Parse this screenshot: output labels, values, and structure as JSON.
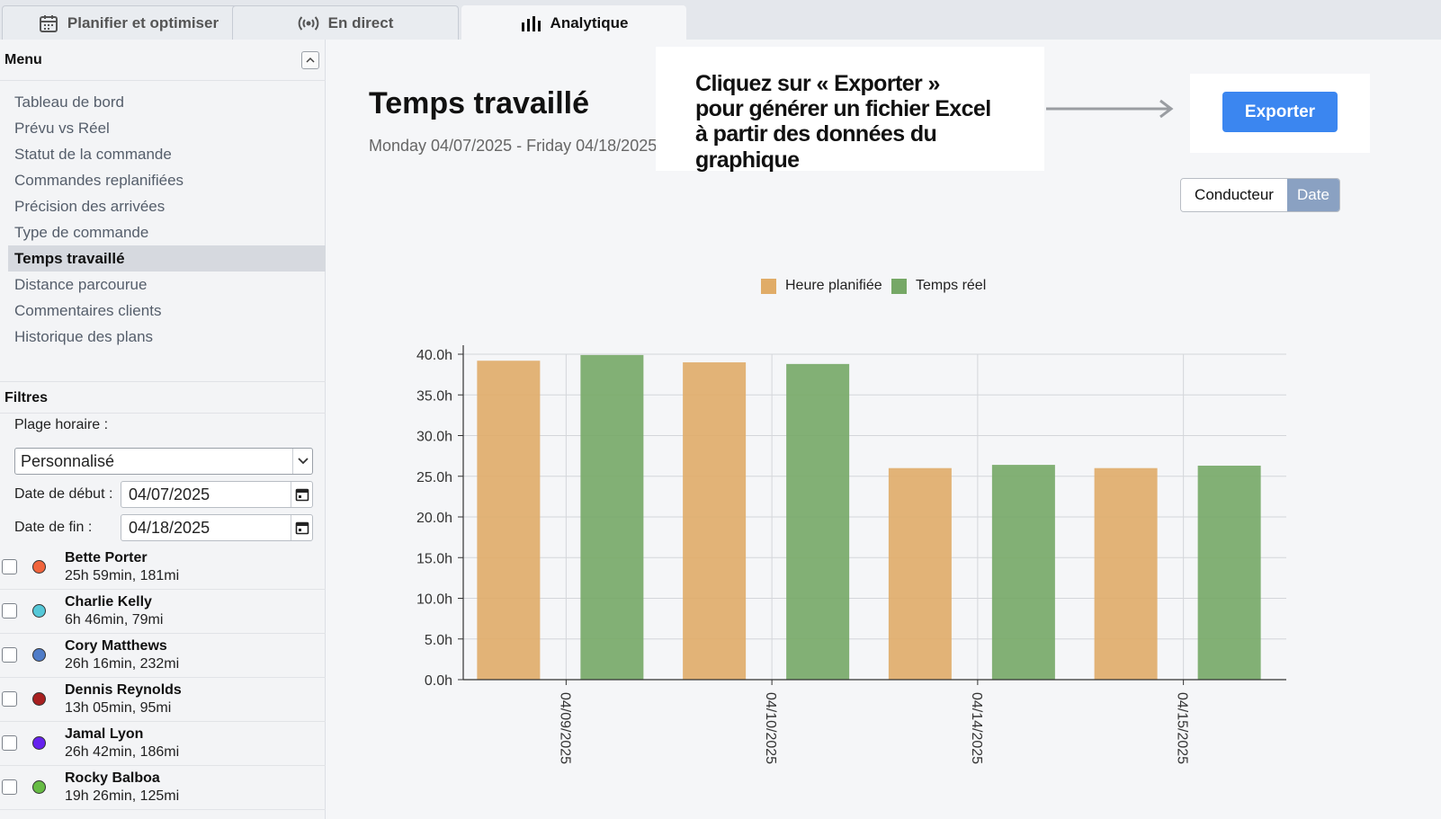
{
  "tabs": [
    {
      "label": "Planifier et optimiser",
      "icon": "calendar-icon"
    },
    {
      "label": "En direct",
      "icon": "broadcast-icon"
    },
    {
      "label": "Analytique",
      "icon": "bar-chart-icon"
    }
  ],
  "sidebar": {
    "menu_title": "Menu",
    "menu_items": [
      "Tableau de bord",
      "Prévu vs Réel",
      "Statut de la commande",
      "Commandes replanifiées",
      "Précision des arrivées",
      "Type de commande",
      "Temps travaillé",
      "Distance parcourue",
      "Commentaires clients",
      "Historique des plans"
    ],
    "active_item": "Temps travaillé",
    "filters_title": "Filtres",
    "time_range_label": "Plage horaire :",
    "time_range_value": "Personnalisé",
    "start_label": "Date de début :",
    "start_value": "04/07/2025",
    "end_label": "Date de fin :",
    "end_value": "04/18/2025",
    "drivers": [
      {
        "name": "Bette Porter",
        "stats": "25h 59min, 181mi",
        "color": "#f0643c"
      },
      {
        "name": "Charlie Kelly",
        "stats": "6h 46min, 79mi",
        "color": "#55c8d8"
      },
      {
        "name": "Cory Matthews",
        "stats": "26h 16min, 232mi",
        "color": "#4f7cc8"
      },
      {
        "name": "Dennis Reynolds",
        "stats": "13h 05min, 95mi",
        "color": "#a82020"
      },
      {
        "name": "Jamal Lyon",
        "stats": "26h 42min, 186mi",
        "color": "#6622ee"
      },
      {
        "name": "Rocky Balboa",
        "stats": "19h 26min, 125mi",
        "color": "#66bb44"
      }
    ]
  },
  "main": {
    "title": "Temps travaillé",
    "date_range": "Monday 04/07/2025 - Friday 04/18/2025",
    "export_label": "Exporter",
    "toggle": [
      "Conducteur",
      "Date"
    ],
    "toggle_selected": "Date"
  },
  "callout": {
    "lines": [
      "Cliquez sur « Exporter »",
      "pour générer un fichier Excel",
      "à partir des données du graphique"
    ]
  },
  "colors": {
    "accent": "#3b86f0",
    "planned": "#e0ac68",
    "actual": "#76a866"
  },
  "chart_data": {
    "type": "bar",
    "categories": [
      "04/09/2025",
      "04/10/2025",
      "04/14/2025",
      "04/15/2025"
    ],
    "series": [
      {
        "name": "Heure planifiée",
        "values": [
          39.2,
          39.0,
          26.0,
          26.0
        ],
        "color": "#e0ac68"
      },
      {
        "name": "Temps réel",
        "values": [
          39.9,
          38.8,
          26.4,
          26.3
        ],
        "color": "#76a866"
      }
    ],
    "ylim": [
      0,
      40
    ],
    "yticks": [
      "0.0h",
      "5.0h",
      "10.0h",
      "15.0h",
      "20.0h",
      "25.0h",
      "30.0h",
      "35.0h",
      "40.0h"
    ],
    "legend_position": "top-center",
    "grid": true
  }
}
